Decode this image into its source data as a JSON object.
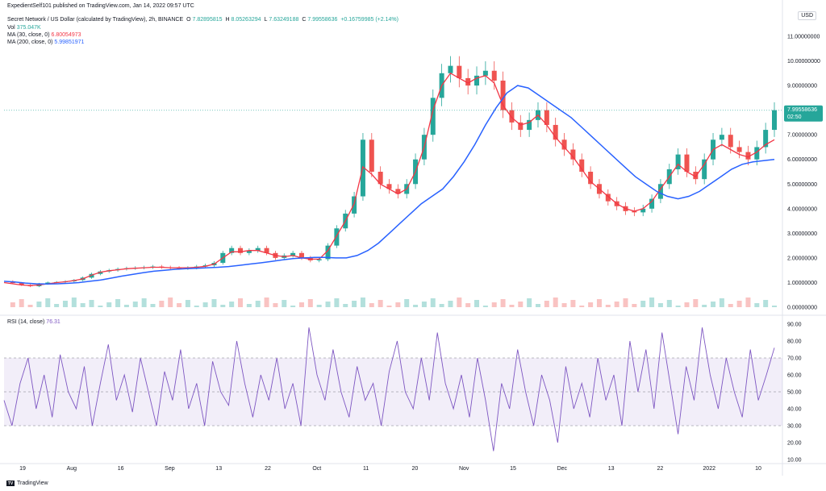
{
  "header": {
    "publisher": "ExpedientSelf101 published on TradingView.com, Jan 14, 2022 09:57 UTC",
    "symbol": "Secret Network / US Dollar (calculated by TradingView), 2h, BINANCE",
    "ohlc": {
      "o_label": "O",
      "o": "7.82895815",
      "h_label": "H",
      "h": "8.05263294",
      "l_label": "L",
      "l": "7.63249188",
      "c_label": "C",
      "c": "7.99558636",
      "change": "+0.16759985 (+2.14%)"
    },
    "vol_label": "Vol",
    "vol": "375.047K",
    "ma30_label": "MA (30, close, 0)",
    "ma30": "6.80054973",
    "ma200_label": "MA (200, close, 0)",
    "ma200": "5.99851971"
  },
  "currency": "USD",
  "price_tag": {
    "value": "7.99558636",
    "countdown": "02:50"
  },
  "rsi_label": "RSI (14, close)",
  "rsi_value": "76.31",
  "footer_brand": "TradingView",
  "colors": {
    "up": "#26a69a",
    "down": "#ef5350",
    "ma30": "#f23645",
    "ma200": "#2962ff",
    "rsi": "#7e57c2",
    "rsi_band": "#7e57c2"
  },
  "chart_data": [
    {
      "type": "line",
      "series_kind": "candlestick",
      "ylim": [
        0,
        11
      ],
      "price_ticks": [
        "11.00000000",
        "10.00000000",
        "9.00000000",
        "8.00000000",
        "7.00000000",
        "6.00000000",
        "5.00000000",
        "4.00000000",
        "3.00000000",
        "2.00000000",
        "1.00000000",
        "0.00000000"
      ],
      "x_ticks": [
        "19",
        "Aug",
        "16",
        "Sep",
        "13",
        "22",
        "Oct",
        "11",
        "20",
        "Nov",
        "15",
        "Dec",
        "13",
        "22",
        "2022",
        "10"
      ],
      "price_path": [
        1.05,
        0.98,
        0.9,
        0.85,
        0.95,
        1.0,
        1.02,
        1.05,
        1.1,
        1.2,
        1.35,
        1.45,
        1.5,
        1.55,
        1.58,
        1.6,
        1.62,
        1.65,
        1.62,
        1.6,
        1.58,
        1.6,
        1.65,
        1.7,
        1.8,
        2.2,
        2.4,
        2.2,
        2.3,
        2.4,
        2.2,
        2.0,
        2.1,
        2.2,
        2.0,
        1.9,
        1.95,
        2.5,
        3.2,
        3.8,
        4.5,
        6.8,
        5.5,
        5.0,
        4.8,
        4.6,
        5.0,
        6.0,
        7.0,
        8.5,
        9.5,
        9.8,
        9.3,
        9.0,
        9.4,
        9.6,
        9.2,
        8.0,
        7.5,
        7.2,
        7.6,
        8.0,
        7.4,
        6.8,
        6.4,
        6.0,
        5.5,
        5.0,
        4.6,
        4.3,
        4.1,
        3.9,
        3.85,
        4.0,
        4.4,
        5.0,
        5.6,
        6.2,
        5.5,
        5.2,
        6.0,
        6.8,
        7.0,
        6.5,
        6.3,
        6.0,
        6.5,
        7.2,
        8.0
      ],
      "ma30_path": [
        1.0,
        0.95,
        0.9,
        0.88,
        0.9,
        0.95,
        1.0,
        1.03,
        1.08,
        1.15,
        1.3,
        1.42,
        1.48,
        1.52,
        1.56,
        1.58,
        1.6,
        1.62,
        1.62,
        1.6,
        1.6,
        1.6,
        1.62,
        1.66,
        1.75,
        2.0,
        2.25,
        2.25,
        2.3,
        2.3,
        2.2,
        2.1,
        2.05,
        2.1,
        2.0,
        1.95,
        1.95,
        2.3,
        2.9,
        3.5,
        4.2,
        5.7,
        5.4,
        5.0,
        4.8,
        4.6,
        4.8,
        5.5,
        6.5,
        8.0,
        9.0,
        9.5,
        9.3,
        9.1,
        9.3,
        9.4,
        9.1,
        8.2,
        7.7,
        7.4,
        7.5,
        7.8,
        7.4,
        6.9,
        6.5,
        6.1,
        5.6,
        5.1,
        4.8,
        4.5,
        4.2,
        4.0,
        3.9,
        4.0,
        4.3,
        4.8,
        5.3,
        5.8,
        5.5,
        5.3,
        5.8,
        6.4,
        6.6,
        6.4,
        6.2,
        6.1,
        6.3,
        6.6,
        6.8
      ],
      "ma200_path": [
        1.05,
        1.02,
        0.98,
        0.95,
        0.94,
        0.95,
        0.97,
        1.0,
        1.05,
        1.1,
        1.18,
        1.26,
        1.33,
        1.4,
        1.46,
        1.5,
        1.54,
        1.56,
        1.58,
        1.6,
        1.62,
        1.65,
        1.7,
        1.75,
        1.8,
        1.86,
        1.92,
        1.97,
        2.0,
        2.02,
        2.02,
        2.0,
        2.0,
        2.1,
        2.3,
        2.6,
        3.0,
        3.4,
        3.8,
        4.2,
        4.5,
        4.8,
        5.3,
        5.9,
        6.6,
        7.4,
        8.1,
        8.7,
        9.0,
        8.9,
        8.6,
        8.3,
        8.0,
        7.7,
        7.3,
        6.9,
        6.5,
        6.1,
        5.7,
        5.3,
        5.0,
        4.7,
        4.5,
        4.4,
        4.5,
        4.7,
        5.0,
        5.3,
        5.6,
        5.8,
        5.9,
        5.95,
        6.0
      ]
    },
    {
      "type": "line",
      "title": "RSI (14, close)",
      "ylim": [
        10,
        90
      ],
      "y_ticks": [
        "90.00",
        "80.00",
        "70.00",
        "60.00",
        "50.00",
        "40.00",
        "30.00",
        "20.00",
        "10.00"
      ],
      "band": [
        30,
        70
      ],
      "values": [
        45,
        30,
        55,
        70,
        40,
        60,
        35,
        72,
        50,
        40,
        65,
        30,
        55,
        78,
        45,
        60,
        38,
        70,
        50,
        30,
        62,
        45,
        75,
        40,
        55,
        30,
        68,
        50,
        42,
        80,
        55,
        35,
        60,
        45,
        70,
        40,
        55,
        30,
        88,
        60,
        45,
        75,
        50,
        35,
        65,
        45,
        55,
        30,
        62,
        80,
        50,
        40,
        70,
        45,
        85,
        55,
        40,
        60,
        35,
        70,
        45,
        15,
        55,
        40,
        75,
        50,
        30,
        60,
        45,
        20,
        65,
        40,
        55,
        35,
        70,
        45,
        60,
        30,
        80,
        50,
        75,
        40,
        85,
        55,
        25,
        65,
        45,
        88,
        60,
        40,
        70,
        50,
        35,
        75,
        45,
        60,
        76
      ]
    }
  ]
}
